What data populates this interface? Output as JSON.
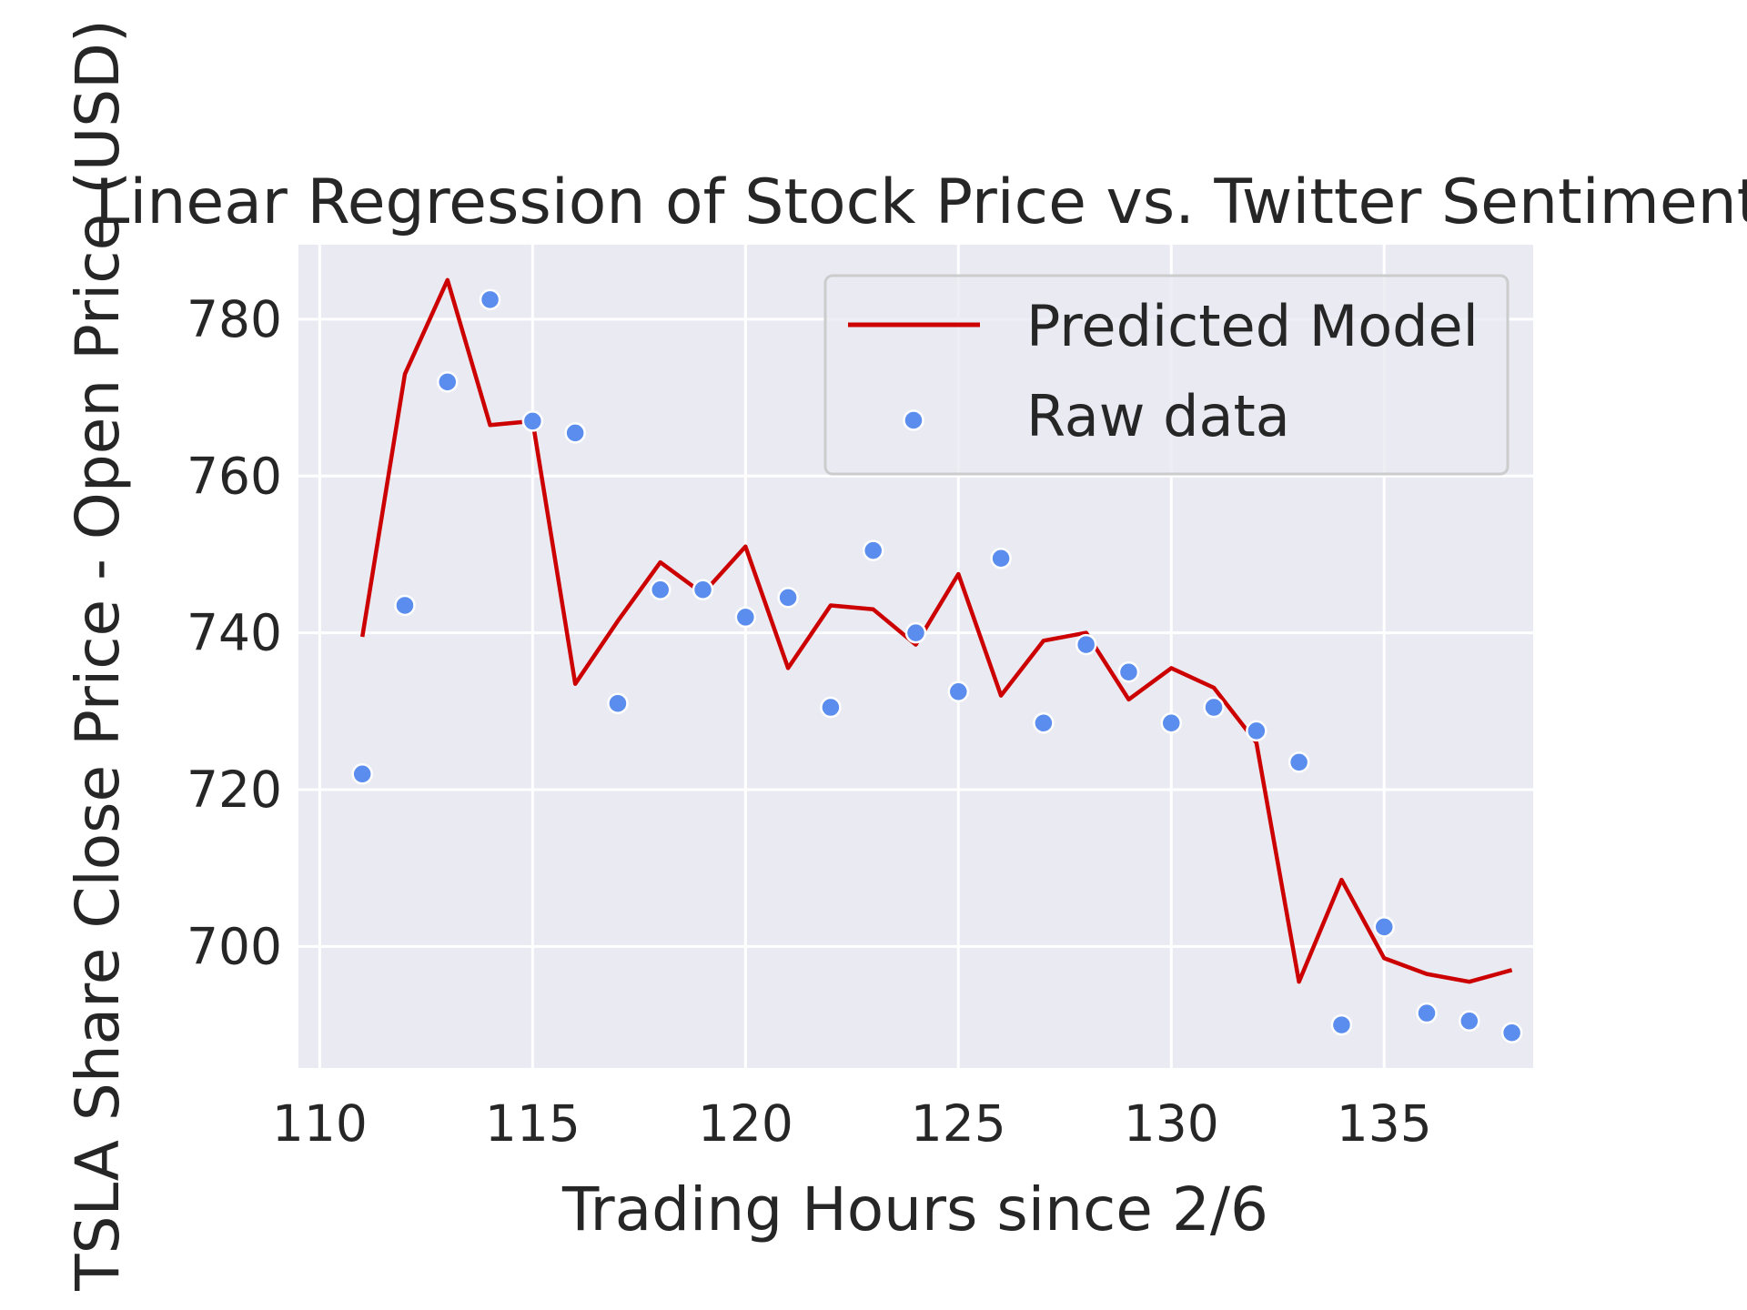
{
  "chart_data": {
    "type": "line",
    "title": "Linear Regression of Stock Price vs. Twitter Sentiment",
    "xlabel": "Trading Hours since 2/6",
    "ylabel": "TSLA Share Close Price - Open Price (USD)",
    "xlim": [
      109.5,
      138.5
    ],
    "ylim": [
      684.5,
      789.5
    ],
    "xticks": [
      110,
      115,
      120,
      125,
      130,
      135
    ],
    "yticks": [
      700,
      720,
      740,
      760,
      780
    ],
    "grid": true,
    "legend_position": "top-right",
    "colors": {
      "background": "#eaeaf2",
      "grid": "#ffffff",
      "line": "#cc0000",
      "points": "#5b8def"
    },
    "series": [
      {
        "name": "Predicted Model",
        "kind": "line",
        "x": [
          111,
          112,
          113,
          114,
          115,
          116,
          117,
          118,
          119,
          120,
          121,
          122,
          123,
          124,
          125,
          126,
          127,
          128,
          129,
          130,
          131,
          132,
          133,
          134,
          135,
          136,
          137,
          138
        ],
        "y": [
          739.5,
          773.0,
          785.0,
          766.5,
          767.0,
          733.5,
          741.5,
          749.0,
          745.0,
          751.0,
          735.5,
          743.5,
          743.0,
          738.5,
          747.5,
          732.0,
          739.0,
          740.0,
          731.5,
          735.5,
          733.0,
          726.0,
          695.5,
          708.5,
          698.5,
          696.5,
          695.5,
          697.0
        ]
      },
      {
        "name": "Raw data",
        "kind": "scatter",
        "x": [
          111,
          112,
          113,
          114,
          115,
          116,
          117,
          118,
          119,
          120,
          121,
          122,
          123,
          124,
          125,
          126,
          127,
          128,
          129,
          130,
          131,
          132,
          133,
          134,
          135,
          136,
          137,
          138
        ],
        "y": [
          722.0,
          743.5,
          772.0,
          782.5,
          767.0,
          765.5,
          731.0,
          745.5,
          745.5,
          742.0,
          744.5,
          730.5,
          750.5,
          740.0,
          732.5,
          749.5,
          728.5,
          738.5,
          735.0,
          728.5,
          730.5,
          727.5,
          723.5,
          690.0,
          702.5,
          691.5,
          690.5,
          689.0
        ]
      }
    ]
  }
}
